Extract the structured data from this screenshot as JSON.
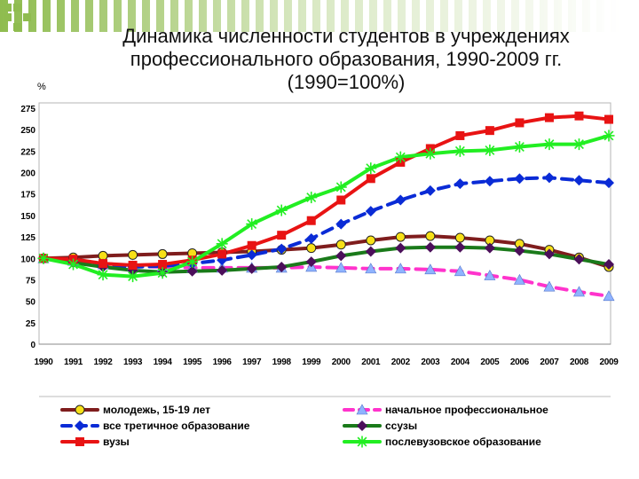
{
  "title": "Динамика численности студентов в учреждениях профессионального образования, 1990-2009 гг. (1990=100%)",
  "y_unit_label": "%",
  "chart_data": {
    "type": "line",
    "title": "Динамика численности студентов в учреждениях профессионального образования, 1990-2009 гг. (1990=100%)",
    "ylabel": "%",
    "xlabel": "",
    "ylim": [
      0,
      275
    ],
    "yticks": [
      0,
      25,
      50,
      75,
      100,
      125,
      150,
      175,
      200,
      225,
      250,
      275
    ],
    "grid": false,
    "legend_position": "bottom",
    "x": [
      "1990",
      "1991",
      "1992",
      "1993",
      "1994",
      "1995",
      "1996",
      "1997",
      "1998",
      "1999",
      "2000",
      "2001",
      "2002",
      "2003",
      "2004",
      "2005",
      "2006",
      "2007",
      "2008",
      "2009"
    ],
    "series": [
      {
        "name": "молодежь, 15-19 лет",
        "color": "#7f1d1d",
        "marker_color": "#f7e018",
        "dash": "solid",
        "marker": "circle",
        "values": [
          100,
          101,
          103,
          104,
          105,
          106,
          107,
          108,
          110,
          112,
          116,
          121,
          125,
          126,
          124,
          121,
          117,
          110,
          101,
          90
        ]
      },
      {
        "name": "начальное профессиональное",
        "color": "#ff33cc",
        "marker_color": "#8fb3ff",
        "dash": "dashed",
        "marker": "triangle",
        "values": [
          100,
          97,
          93,
          91,
          90,
          89,
          89,
          89,
          89,
          90,
          89,
          88,
          88,
          87,
          85,
          80,
          75,
          67,
          61,
          56
        ]
      },
      {
        "name": "все третичное образование",
        "color": "#0a2bd6",
        "marker_color": "#0a2bd6",
        "dash": "dashed",
        "marker": "diamond",
        "values": [
          100,
          96,
          92,
          90,
          91,
          94,
          98,
          104,
          111,
          123,
          140,
          155,
          168,
          179,
          187,
          190,
          193,
          194,
          191,
          188
        ]
      },
      {
        "name": "ссузы",
        "color": "#1a7a1a",
        "marker_color": "#4b0f5a",
        "dash": "solid",
        "marker": "diamond",
        "values": [
          100,
          95,
          90,
          86,
          84,
          85,
          86,
          88,
          90,
          96,
          103,
          108,
          112,
          113,
          113,
          112,
          109,
          105,
          99,
          93
        ]
      },
      {
        "name": "вузы",
        "color": "#e81313",
        "marker_color": "#e81313",
        "dash": "solid",
        "marker": "square",
        "values": [
          100,
          99,
          94,
          92,
          93,
          98,
          105,
          115,
          127,
          144,
          168,
          193,
          212,
          228,
          243,
          249,
          258,
          264,
          266,
          262
        ]
      },
      {
        "name": "послевузовское образование",
        "color": "#22ee22",
        "marker_color": "#22ee22",
        "dash": "solid",
        "marker": "asterisk",
        "values": [
          100,
          93,
          81,
          79,
          83,
          96,
          117,
          140,
          156,
          171,
          183,
          205,
          218,
          222,
          225,
          226,
          230,
          233,
          233,
          243
        ]
      }
    ],
    "legend_order": [
      [
        "молодежь, 15-19 лет",
        "начальное профессиональное"
      ],
      [
        "все третичное образование",
        "ссузы"
      ],
      [
        "вузы",
        "послевузовское образование"
      ]
    ]
  }
}
